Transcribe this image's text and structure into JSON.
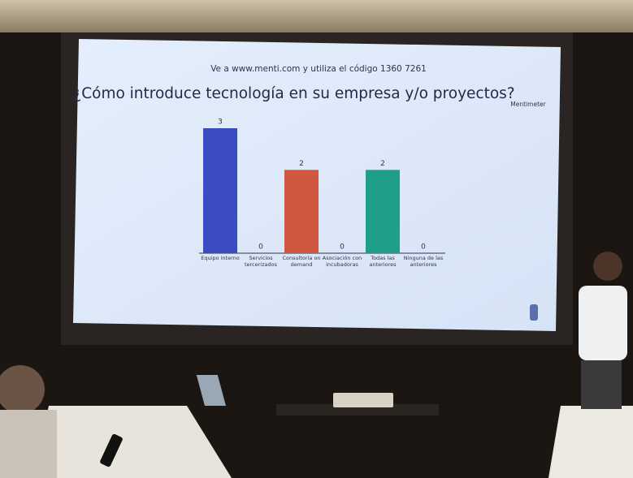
{
  "chart_data": {
    "type": "bar",
    "subtitle": "Ve a www.menti.com y utiliza el código 1360 7261",
    "title": "¿Cómo introduce tecnología en su empresa y/o proyectos?",
    "brand": "Mentimeter",
    "categories": [
      "Equipo interno",
      "Servicios tercerizados",
      "Consultoría on demand",
      "Asociación con incubadoras",
      "Todas las anteriores",
      "Ninguna de las anteriores"
    ],
    "values": [
      3,
      0,
      2,
      0,
      2,
      0
    ],
    "colors": [
      "#3a4cc0",
      "#e07a9a",
      "#cf5840",
      "#6c8fd6",
      "#1f9f87",
      "#e3b24a"
    ]
  }
}
